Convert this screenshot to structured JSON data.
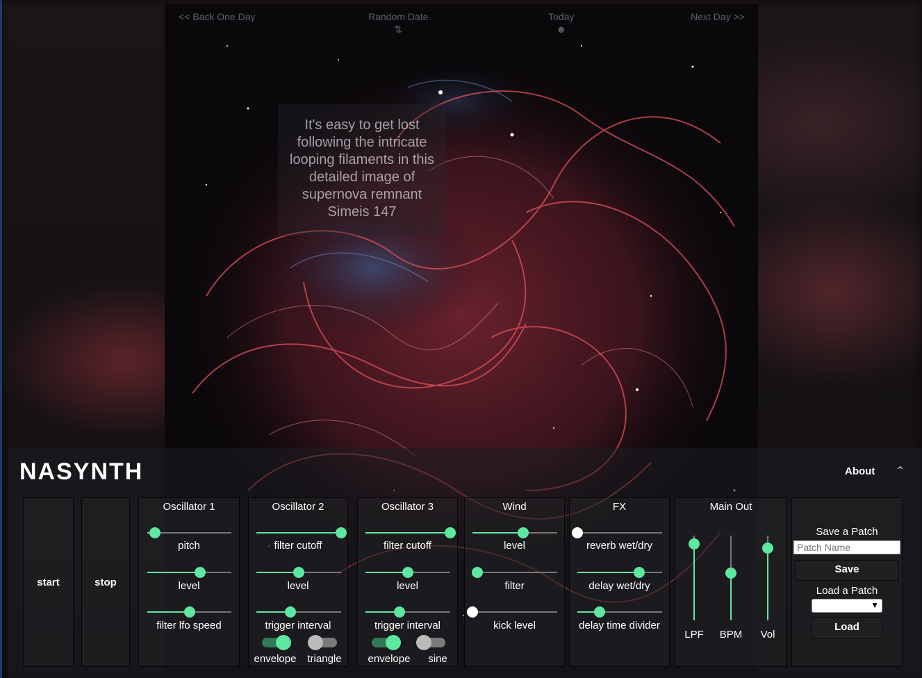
{
  "apod": {
    "nav": {
      "back": "<< Back One Day",
      "random": "Random Date",
      "today": "Today",
      "next": "Next Day >>"
    },
    "caption": "It's easy to get lost following the intricate looping filaments in this detailed image of supernova remnant Simeis 147"
  },
  "header": {
    "logo": "NASYNTH",
    "about": "About"
  },
  "transport": {
    "start": "start",
    "stop": "stop"
  },
  "osc1": {
    "title": "Oscillator 1",
    "sliders": [
      {
        "label": "pitch",
        "value": 0.09
      },
      {
        "label": "level",
        "value": 0.63
      },
      {
        "label": "filter lfo speed",
        "value": 0.5
      }
    ]
  },
  "osc2": {
    "title": "Oscillator 2",
    "sliders": [
      {
        "label": "filter cutoff",
        "value": 1.0
      },
      {
        "label": "level",
        "value": 0.5
      },
      {
        "label": "trigger interval",
        "value": 0.4
      }
    ],
    "toggles": [
      {
        "label": "envelope",
        "on": true
      },
      {
        "label": "triangle",
        "on": false
      }
    ]
  },
  "osc3": {
    "title": "Oscillator 3",
    "sliders": [
      {
        "label": "filter cutoff",
        "value": 1.0
      },
      {
        "label": "level",
        "value": 0.5
      },
      {
        "label": "trigger interval",
        "value": 0.4
      }
    ],
    "toggles": [
      {
        "label": "envelope",
        "on": true
      },
      {
        "label": "sine",
        "on": false
      }
    ]
  },
  "wind": {
    "title": "Wind",
    "sliders": [
      {
        "label": "level",
        "value": 0.6
      },
      {
        "label": "filter",
        "value": 0.06
      },
      {
        "label": "kick level",
        "value": 0.0
      }
    ]
  },
  "fx": {
    "title": "FX",
    "sliders": [
      {
        "label": "reverb wet/dry",
        "value": 0.0
      },
      {
        "label": "delay wet/dry",
        "value": 0.73
      },
      {
        "label": "delay time divider",
        "value": 0.26
      }
    ]
  },
  "main_out": {
    "title": "Main Out",
    "sliders": [
      {
        "label": "LPF",
        "value": 0.9
      },
      {
        "label": "BPM",
        "value": 0.56
      },
      {
        "label": "Vol",
        "value": 0.85
      }
    ]
  },
  "patch": {
    "save_heading": "Save a Patch",
    "name_placeholder": "Patch Name",
    "save_label": "Save",
    "load_heading": "Load a Patch",
    "load_label": "Load"
  },
  "colors": {
    "accent": "#5ee89f",
    "accent_dim": "#2f7a56"
  }
}
